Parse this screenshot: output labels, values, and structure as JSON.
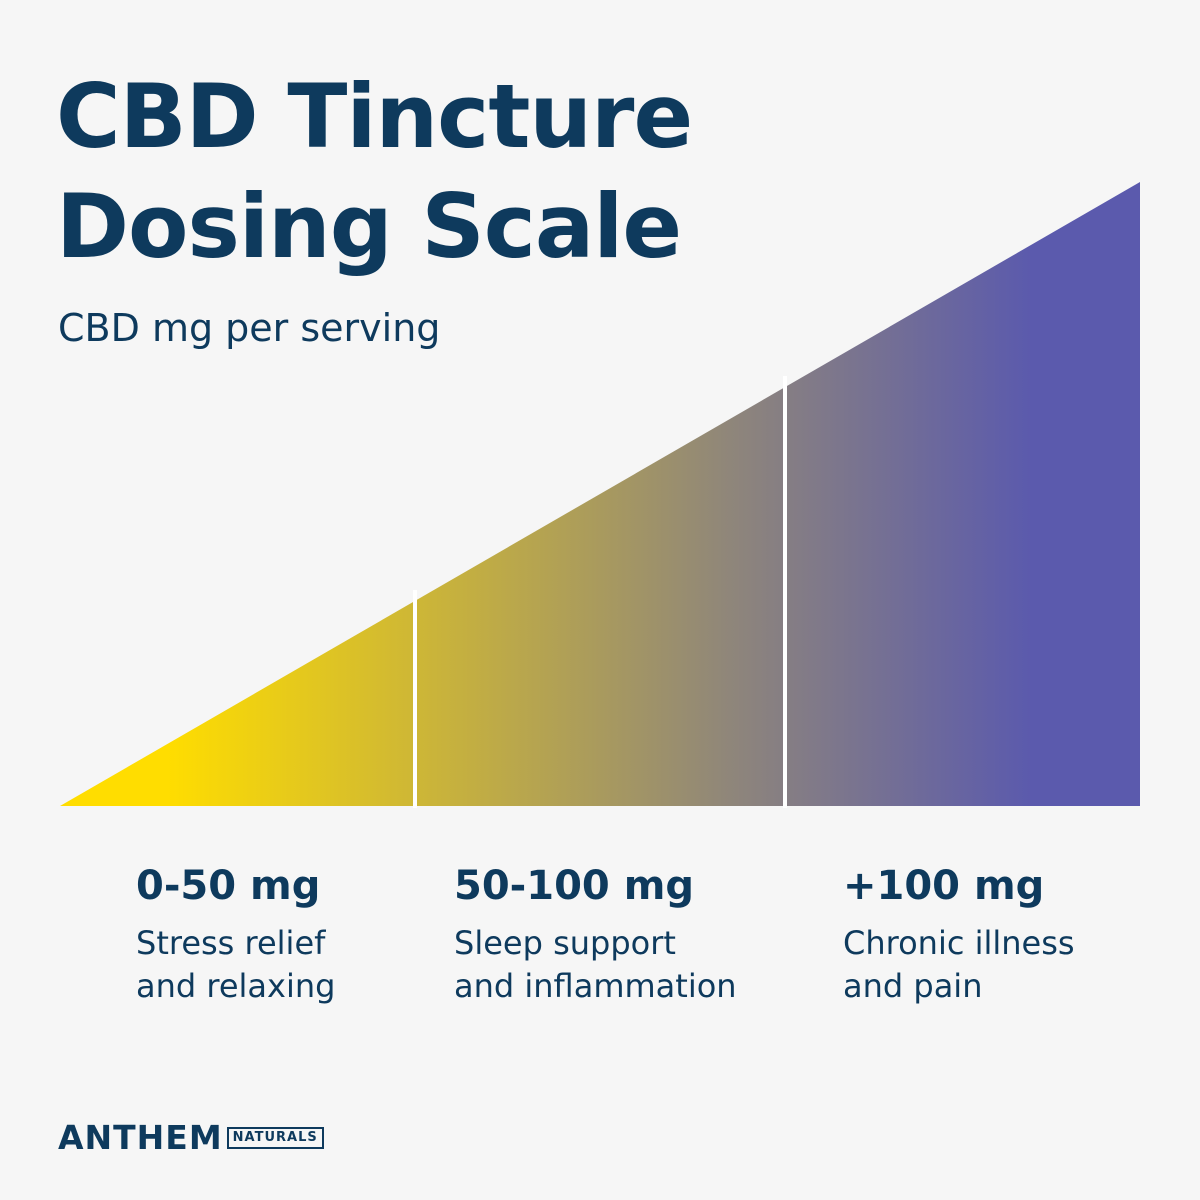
{
  "title": {
    "line1": "CBD Tincture",
    "line2": "Dosing Scale"
  },
  "subtitle": "CBD mg per serving",
  "colors": {
    "text": "#0e3a5d",
    "background": "#f6f6f6",
    "gradient_start": "#ffdd00",
    "gradient_mid": "#8f867a",
    "gradient_end": "#5b5aad",
    "divider": "#ffffff"
  },
  "tiers": [
    {
      "range": "0-50 mg",
      "desc_line1": "Stress relief",
      "desc_line2": "and relaxing"
    },
    {
      "range": "50-100 mg",
      "desc_line1": "Sleep support",
      "desc_line2": "and inflammation"
    },
    {
      "range": "+100 mg",
      "desc_line1": "Chronic illness",
      "desc_line2": "and pain"
    }
  ],
  "logo": {
    "main": "ANTHEM",
    "sub": "NATURALS"
  }
}
